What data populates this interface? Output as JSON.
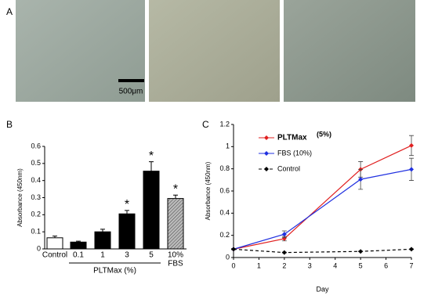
{
  "panel_labels": [
    "A",
    "B",
    "C"
  ],
  "scale_bar_label": "500μm",
  "chart_data": [
    {
      "type": "bar",
      "y_label": "Absorbance (450nm)",
      "categories": [
        "Control",
        "0.1",
        "1",
        "3",
        "5",
        "10%"
      ],
      "values": [
        0.065,
        0.04,
        0.1,
        0.205,
        0.455,
        0.295
      ],
      "errors": [
        0.01,
        0.005,
        0.015,
        0.02,
        0.055,
        0.02
      ],
      "markers": [
        null,
        null,
        null,
        "*",
        "*",
        "*"
      ],
      "colors": [
        "#ffffff",
        "#000000",
        "#000000",
        "#000000",
        "#000000",
        "#9a9a9a"
      ],
      "hatched": [
        false,
        false,
        false,
        false,
        false,
        true
      ],
      "group_label": "PLTMax (%)",
      "fbs_label": "FBS",
      "ylim": [
        0,
        0.6
      ],
      "yticks": [
        0,
        0.1,
        0.2,
        0.3,
        0.4,
        0.5,
        0.6
      ]
    },
    {
      "type": "line",
      "x_label": "Day",
      "y_label": "Absorbance (450nm)",
      "x": [
        0,
        2,
        5,
        7
      ],
      "series": [
        {
          "name": "PLTMax",
          "color": "#e02020",
          "dashed": false,
          "values": [
            0.075,
            0.17,
            0.795,
            1.01
          ],
          "errors": [
            0.005,
            0.02,
            0.07,
            0.09
          ]
        },
        {
          "name": "FBS (10%)",
          "color": "#2030e0",
          "dashed": false,
          "values": [
            0.075,
            0.21,
            0.705,
            0.795
          ],
          "errors": [
            0.005,
            0.03,
            0.09,
            0.1
          ]
        },
        {
          "name": "Control",
          "color": "#000000",
          "dashed": true,
          "values": [
            0.075,
            0.045,
            0.055,
            0.075
          ],
          "errors": [
            0.003,
            0.003,
            0.003,
            0.003
          ]
        }
      ],
      "legend_note": "(5%)",
      "xlim": [
        0,
        7
      ],
      "xticks": [
        0,
        1,
        2,
        3,
        4,
        5,
        6,
        7
      ],
      "ylim": [
        0,
        1.2
      ],
      "yticks": [
        0,
        0.2,
        0.4,
        0.6,
        0.8,
        1.0,
        1.2
      ]
    }
  ]
}
